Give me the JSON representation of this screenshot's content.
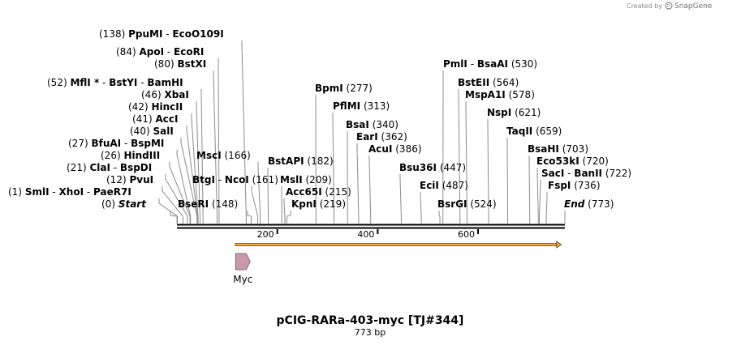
{
  "credit": {
    "prefix": "Created by",
    "brand": "SnapGene"
  },
  "map": {
    "name": "pCIG-RARa-403-myc [TJ#344]",
    "length_label": "773 bp",
    "length": 773,
    "ticks": [
      {
        "pos": 200,
        "label": "200"
      },
      {
        "pos": 400,
        "label": "400"
      },
      {
        "pos": 600,
        "label": "600"
      }
    ],
    "features": [
      {
        "name": "Myc",
        "type": "tag",
        "start": 117,
        "end": 146,
        "color": "#c799aa"
      }
    ],
    "orf": {
      "start": 115,
      "end": 766,
      "color": "#f2a33a"
    }
  },
  "sites": [
    {
      "pos": 0,
      "num": "(0)",
      "names": [
        "Start"
      ],
      "special": true
    },
    {
      "pos": 1,
      "num": "(1)",
      "names": [
        "SmlI",
        "XhoI",
        "PaeR7I"
      ]
    },
    {
      "pos": 12,
      "num": "(12)",
      "names": [
        "PvuI"
      ]
    },
    {
      "pos": 21,
      "num": "(21)",
      "names": [
        "ClaI",
        "BspDI"
      ]
    },
    {
      "pos": 26,
      "num": "(26)",
      "names": [
        "HindIII"
      ]
    },
    {
      "pos": 27,
      "num": "(27)",
      "names": [
        "BfuAI",
        "BspMI"
      ]
    },
    {
      "pos": 40,
      "num": "(40)",
      "names": [
        "SalI"
      ]
    },
    {
      "pos": 41,
      "num": "(41)",
      "names": [
        "AccI"
      ]
    },
    {
      "pos": 42,
      "num": "(42)",
      "names": [
        "HincII"
      ]
    },
    {
      "pos": 46,
      "num": "(46)",
      "names": [
        "XbaI"
      ]
    },
    {
      "pos": 52,
      "num": "(52)",
      "names": [
        "MflI *",
        "BstYI",
        "BamHI"
      ]
    },
    {
      "pos": 80,
      "num": "(80)",
      "names": [
        "BstXI"
      ]
    },
    {
      "pos": 84,
      "num": "(84)",
      "names": [
        "ApoI",
        "EcoRI"
      ]
    },
    {
      "pos": 138,
      "num": "(138)",
      "names": [
        "PpuMI",
        "EcoO109I"
      ]
    },
    {
      "pos": 148,
      "num": "(148)",
      "names": [
        "BseRI"
      ]
    },
    {
      "pos": 161,
      "num": "(161)",
      "names": [
        "BtgI",
        "NcoI"
      ]
    },
    {
      "pos": 166,
      "num": "(166)",
      "names": [
        "MscI"
      ]
    },
    {
      "pos": 182,
      "num": "(182)",
      "names": [
        "BstAPI"
      ]
    },
    {
      "pos": 209,
      "num": "(209)",
      "names": [
        "MslI"
      ]
    },
    {
      "pos": 215,
      "num": "(215)",
      "names": [
        "Acc65I"
      ]
    },
    {
      "pos": 219,
      "num": "(219)",
      "names": [
        "KpnI"
      ]
    },
    {
      "pos": 277,
      "num": "(277)",
      "names": [
        "BpmI"
      ]
    },
    {
      "pos": 313,
      "num": "(313)",
      "names": [
        "PflMI"
      ]
    },
    {
      "pos": 340,
      "num": "(340)",
      "names": [
        "BsaI"
      ]
    },
    {
      "pos": 362,
      "num": "(362)",
      "names": [
        "EarI"
      ]
    },
    {
      "pos": 386,
      "num": "(386)",
      "names": [
        "AcuI"
      ]
    },
    {
      "pos": 447,
      "num": "(447)",
      "names": [
        "Bsu36I"
      ]
    },
    {
      "pos": 487,
      "num": "(487)",
      "names": [
        "EciI"
      ]
    },
    {
      "pos": 524,
      "num": "(524)",
      "names": [
        "BsrGI"
      ]
    },
    {
      "pos": 530,
      "num": "(530)",
      "names": [
        "PmlI",
        "BsaAI"
      ]
    },
    {
      "pos": 564,
      "num": "(564)",
      "names": [
        "BstEII"
      ]
    },
    {
      "pos": 578,
      "num": "(578)",
      "names": [
        "MspA1I"
      ]
    },
    {
      "pos": 621,
      "num": "(621)",
      "names": [
        "NspI"
      ]
    },
    {
      "pos": 659,
      "num": "(659)",
      "names": [
        "TaqII"
      ]
    },
    {
      "pos": 703,
      "num": "(703)",
      "names": [
        "BsaHI"
      ]
    },
    {
      "pos": 720,
      "num": "(720)",
      "names": [
        "Eco53kI"
      ]
    },
    {
      "pos": 722,
      "num": "(722)",
      "names": [
        "SacI",
        "BanII"
      ]
    },
    {
      "pos": 736,
      "num": "(736)",
      "names": [
        "FspI"
      ]
    },
    {
      "pos": 773,
      "num": "(773)",
      "names": [
        "End"
      ],
      "special": true
    }
  ]
}
